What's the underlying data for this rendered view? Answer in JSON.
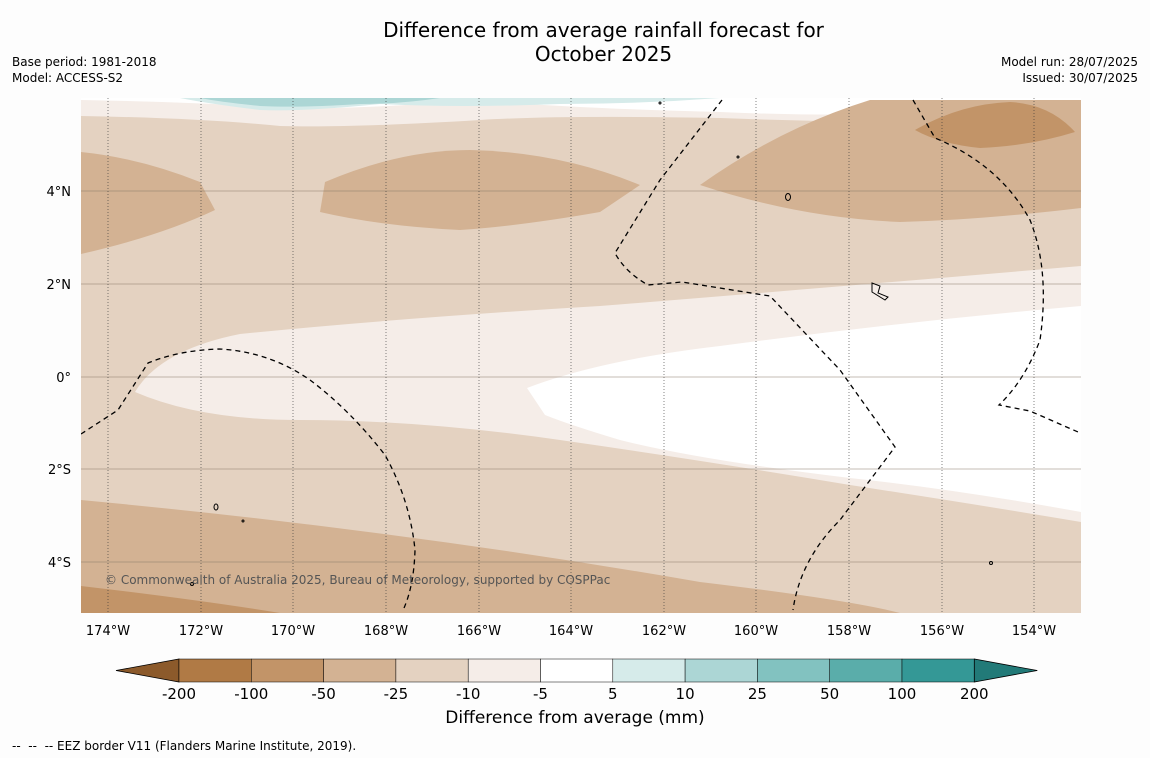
{
  "title": {
    "line1": "Difference from average rainfall forecast for",
    "line2": "October 2025"
  },
  "meta_left": {
    "base_period": "Base period: 1981-2018",
    "model": "Model: ACCESS-S2"
  },
  "meta_right": {
    "model_run": "Model run: 28/07/2025",
    "issued": "Issued: 30/07/2025"
  },
  "lat_labels": [
    "4°N",
    "2°N",
    "0°",
    "2°S",
    "4°S"
  ],
  "lon_labels": [
    "174°W",
    "172°W",
    "170°W",
    "168°W",
    "166°W",
    "164°W",
    "162°W",
    "160°W",
    "158°W",
    "156°W",
    "154°W"
  ],
  "copyright": "© Commonwealth of Australia 2025, Bureau of Meteorology, supported by COSPPac",
  "colorbar": {
    "ticks": [
      "-200",
      "-100",
      "-50",
      "-25",
      "-10",
      "-5",
      "5",
      "10",
      "25",
      "50",
      "100",
      "200"
    ],
    "colors": [
      "#8c5a2b",
      "#b07a45",
      "#c29468",
      "#d3b293",
      "#e4d2c1",
      "#f5ede8",
      "#ffffff",
      "#d6ebea",
      "#acd6d5",
      "#82c2c0",
      "#5aadaa",
      "#349896",
      "#227a78"
    ],
    "label": "Difference from average (mm)"
  },
  "footnote": "--  --  -- EEZ border V11 (Flanders Marine Institute, 2019)."
}
